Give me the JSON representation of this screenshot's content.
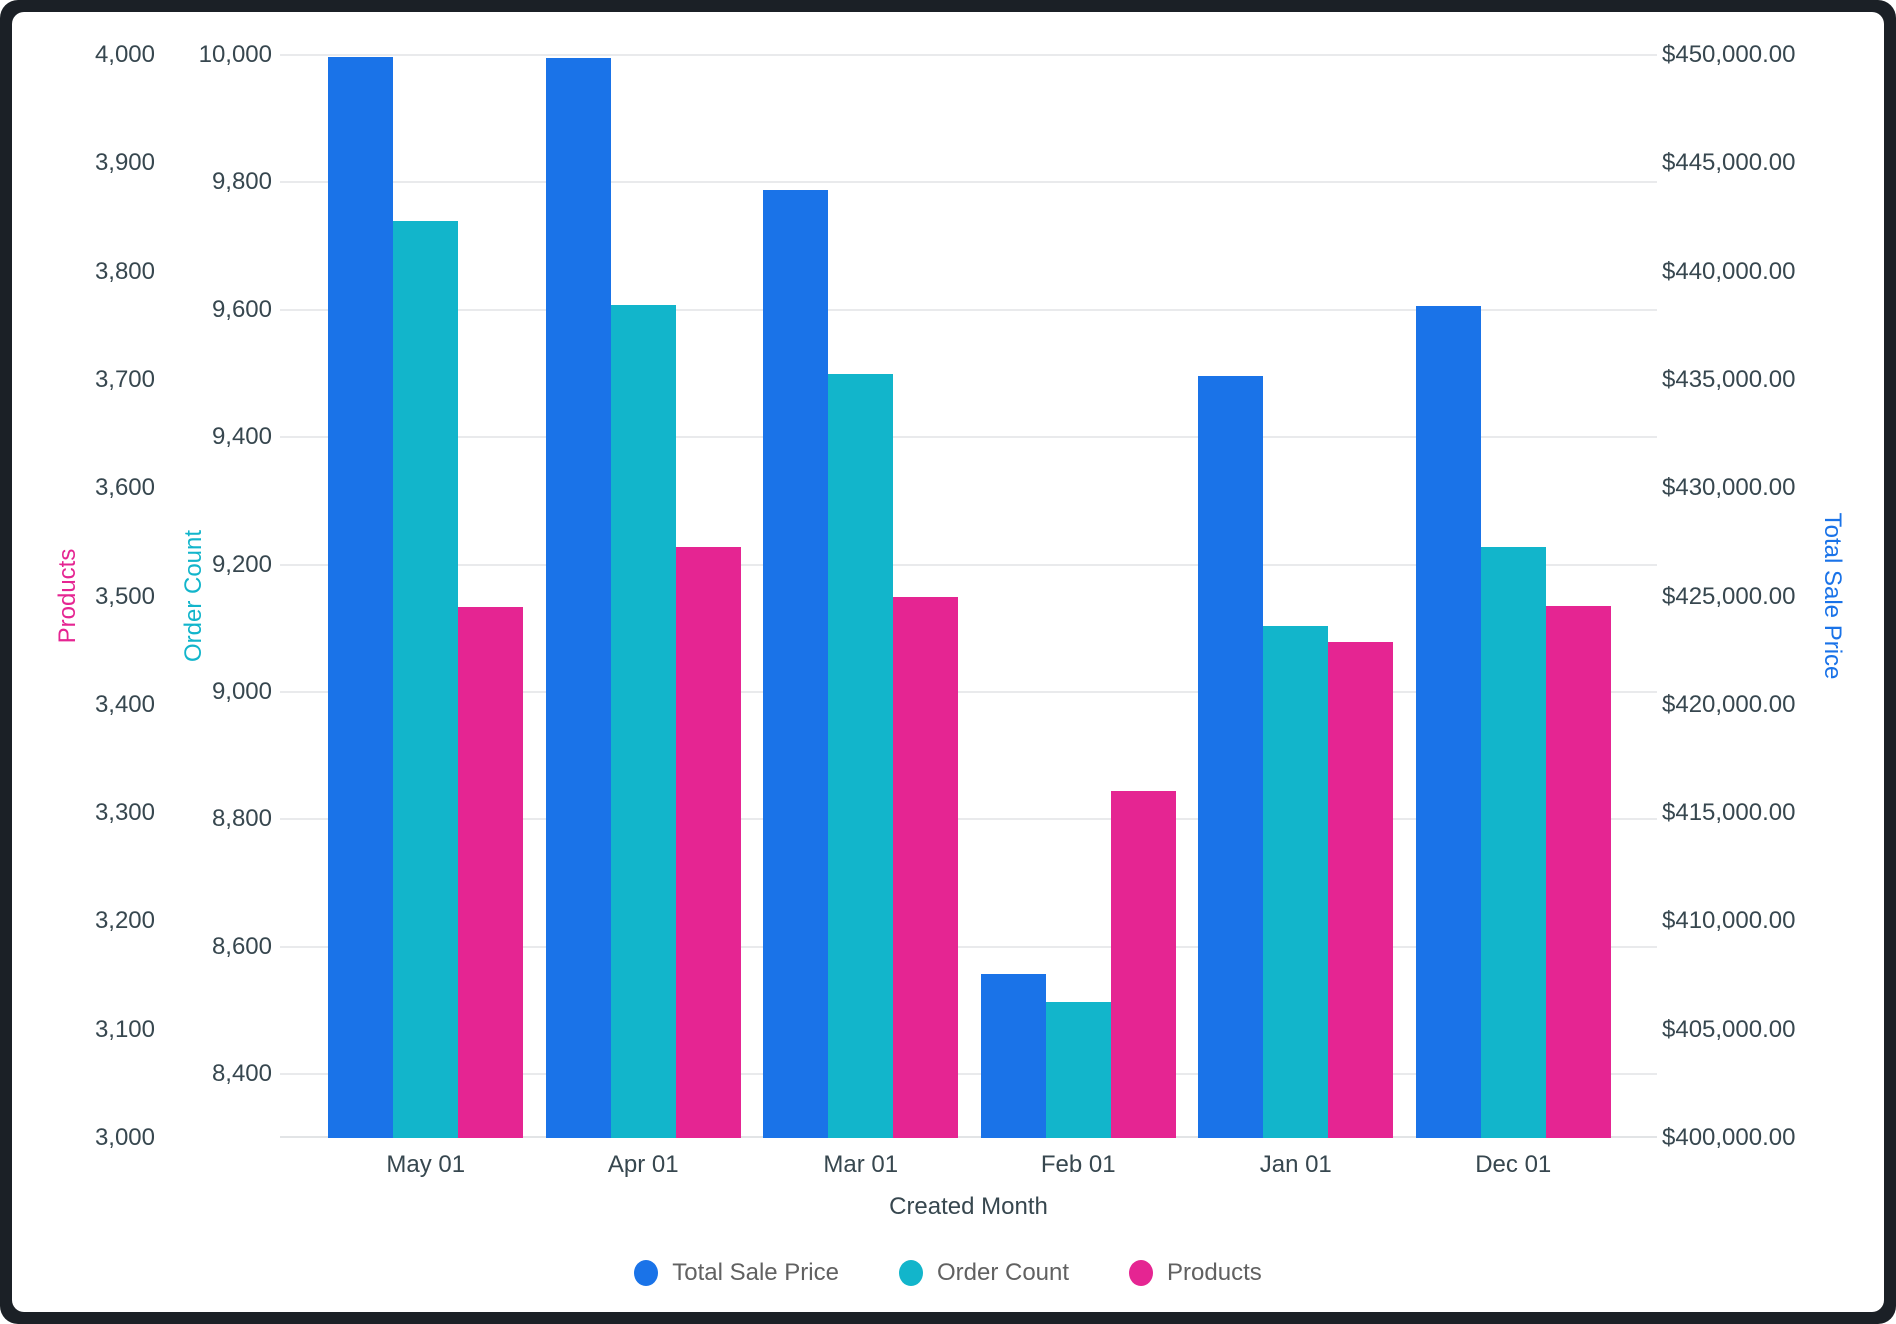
{
  "chart_data": {
    "type": "bar",
    "categories": [
      "May 01",
      "Apr 01",
      "Mar 01",
      "Feb 01",
      "Jan 01",
      "Dec 01"
    ],
    "series": [
      {
        "name": "Total Sale Price",
        "axis": "total_sale_price",
        "color": "#1a73e8",
        "values": [
          449900,
          449850,
          443750,
          407570,
          435170,
          438400
        ]
      },
      {
        "name": "Order Count",
        "axis": "order_count",
        "color": "#12b5cb",
        "values": [
          9740,
          9607,
          9500,
          8514,
          9104,
          9227
        ]
      },
      {
        "name": "Products",
        "axis": "products",
        "color": "#e52592",
        "values": [
          3490,
          3546,
          3500,
          3320,
          3458,
          3491
        ]
      }
    ],
    "xlabel": "Created Month",
    "grid": "horizontal gridlines at order-count ticks, baseline at bottom",
    "legend_position": "bottom-center",
    "axes": {
      "products": {
        "title": "Products",
        "title_color": "#e52592",
        "side": "left-outer",
        "min": 3000,
        "max": 4000,
        "ticks": [
          {
            "value": 4000,
            "label": "4,000"
          },
          {
            "value": 3900,
            "label": "3,900"
          },
          {
            "value": 3800,
            "label": "3,800"
          },
          {
            "value": 3700,
            "label": "3,700"
          },
          {
            "value": 3600,
            "label": "3,600"
          },
          {
            "value": 3500,
            "label": "3,500"
          },
          {
            "value": 3400,
            "label": "3,400"
          },
          {
            "value": 3300,
            "label": "3,300"
          },
          {
            "value": 3200,
            "label": "3,200"
          },
          {
            "value": 3100,
            "label": "3,100"
          },
          {
            "value": 3000,
            "label": "3,000"
          }
        ]
      },
      "order_count": {
        "title": "Order Count",
        "title_color": "#12b5cb",
        "side": "left-inner",
        "min": 8300,
        "max": 10000,
        "ticks": [
          {
            "value": 10000,
            "label": "10,000"
          },
          {
            "value": 9800,
            "label": "9,800"
          },
          {
            "value": 9600,
            "label": "9,600"
          },
          {
            "value": 9400,
            "label": "9,400"
          },
          {
            "value": 9200,
            "label": "9,200"
          },
          {
            "value": 9000,
            "label": "9,000"
          },
          {
            "value": 8800,
            "label": "8,800"
          },
          {
            "value": 8600,
            "label": "8,600"
          },
          {
            "value": 8400,
            "label": "8,400"
          }
        ]
      },
      "total_sale_price": {
        "title": "Total Sale Price",
        "title_color": "#1a73e8",
        "side": "right",
        "min": 400000,
        "max": 450000,
        "ticks": [
          {
            "value": 450000,
            "label": "$450,000.00"
          },
          {
            "value": 445000,
            "label": "$445,000.00"
          },
          {
            "value": 440000,
            "label": "$440,000.00"
          },
          {
            "value": 435000,
            "label": "$435,000.00"
          },
          {
            "value": 430000,
            "label": "$430,000.00"
          },
          {
            "value": 425000,
            "label": "$425,000.00"
          },
          {
            "value": 420000,
            "label": "$420,000.00"
          },
          {
            "value": 415000,
            "label": "$415,000.00"
          },
          {
            "value": 410000,
            "label": "$410,000.00"
          },
          {
            "value": 405000,
            "label": "$405,000.00"
          },
          {
            "value": 400000,
            "label": "$400,000.00"
          }
        ]
      }
    },
    "colors": {
      "tick_text": "#37474f",
      "legend_text": "#616161",
      "gridline": "#e9eaec",
      "frame_background": "#1b2026",
      "card_background": "#ffffff"
    }
  }
}
